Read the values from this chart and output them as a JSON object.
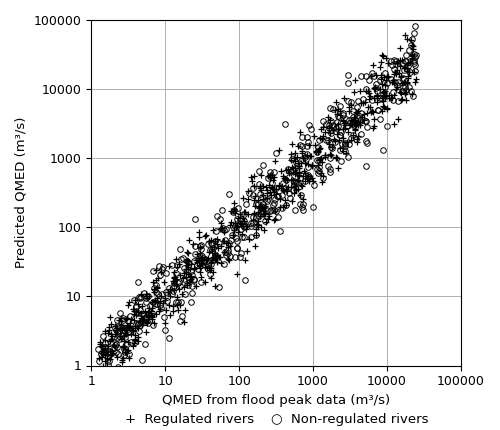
{
  "title": "",
  "xlabel": "QMED from flood peak data (m³/s)",
  "ylabel": "Predicted QMED (m³/s)",
  "xlim": [
    1,
    100000
  ],
  "ylim": [
    1,
    100000
  ],
  "xticks": [
    1,
    10,
    100,
    1000,
    10000,
    100000
  ],
  "yticks": [
    1,
    10,
    100,
    1000,
    10000,
    100000
  ],
  "background_color": "#ffffff",
  "grid_color": "#b0b0b0",
  "marker_color": "#000000",
  "marker_size_plus": 4,
  "marker_size_circle": 4,
  "seed": 42,
  "n_regulated": 700,
  "n_nonregulated": 450,
  "spread_reg": 0.22,
  "spread_noreg": 0.28,
  "xmin": 1.2,
  "xmax": 25000
}
